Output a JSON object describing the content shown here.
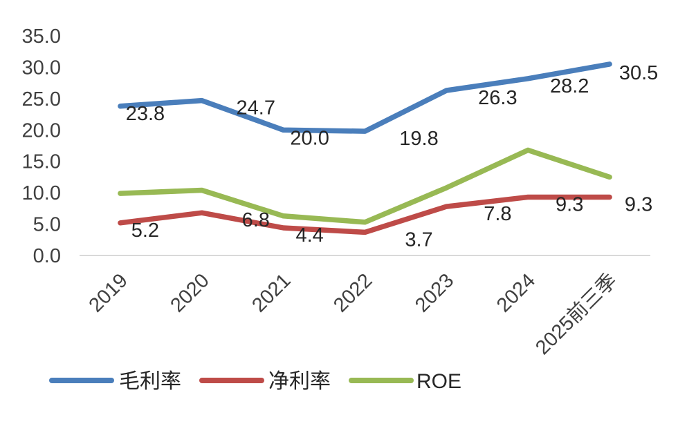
{
  "chart_data": {
    "type": "line",
    "categories": [
      "2019",
      "2020",
      "2021",
      "2022",
      "2023",
      "2024",
      "2025前三季"
    ],
    "ylim": [
      0,
      35
    ],
    "y_ticks": [
      "0.0",
      "5.0",
      "10.0",
      "15.0",
      "20.0",
      "25.0",
      "30.0",
      "35.0"
    ],
    "grid": false,
    "legend_position": "bottom-left",
    "series": [
      {
        "name": "毛利率",
        "color": "#4a7ebb",
        "values": [
          23.8,
          24.7,
          20.0,
          19.8,
          26.3,
          28.2,
          30.5
        ],
        "labels": [
          "23.8",
          "24.7",
          "20.0",
          "19.8",
          "26.3",
          "28.2",
          "30.5"
        ]
      },
      {
        "name": "净利率",
        "color": "#be4b48",
        "values": [
          5.2,
          6.8,
          4.4,
          3.7,
          7.8,
          9.3,
          9.3
        ],
        "labels": [
          "5.2",
          "6.8",
          "4.4",
          "3.7",
          "7.8",
          "9.3",
          "9.3"
        ]
      },
      {
        "name": "ROE",
        "color": "#98b954",
        "values": [
          9.9,
          10.4,
          6.3,
          5.3,
          10.8,
          16.8,
          12.5
        ],
        "labels": []
      }
    ]
  }
}
